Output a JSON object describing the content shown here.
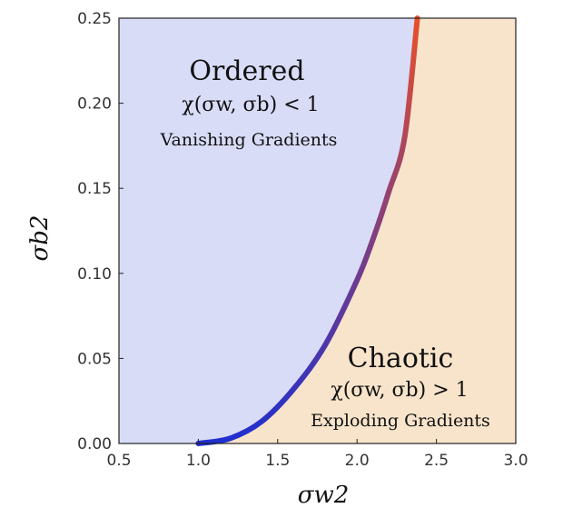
{
  "chart_data": {
    "type": "area",
    "xlim": [
      0.5,
      3.0
    ],
    "ylim": [
      0.0,
      0.25
    ],
    "xticks": [
      "0.5",
      "1.0",
      "1.5",
      "2.0",
      "2.5",
      "3.0"
    ],
    "yticks": [
      "0.00",
      "0.05",
      "0.10",
      "0.15",
      "0.20",
      "0.25"
    ],
    "xlabel": "σw2",
    "ylabel": "σb2",
    "grid": false,
    "boundary": {
      "x": [
        1.0,
        1.2,
        1.4,
        1.6,
        1.8,
        2.0,
        2.1,
        2.2,
        2.3,
        2.38
      ],
      "y": [
        0.0,
        0.003,
        0.013,
        0.032,
        0.058,
        0.096,
        0.12,
        0.148,
        0.18,
        0.25
      ]
    },
    "regions": {
      "ordered": {
        "title": "Ordered",
        "formula": "χ(σw, σb) < 1",
        "subtitle": "Vanishing Gradients",
        "color": "#d9dcf7"
      },
      "chaotic": {
        "title": "Chaotic",
        "formula": "χ(σw, σb) > 1",
        "subtitle": "Exploding Gradients",
        "color": "#f8e4cb"
      }
    },
    "boundary_colors": [
      "#1f2fd0",
      "#e8502a"
    ]
  }
}
